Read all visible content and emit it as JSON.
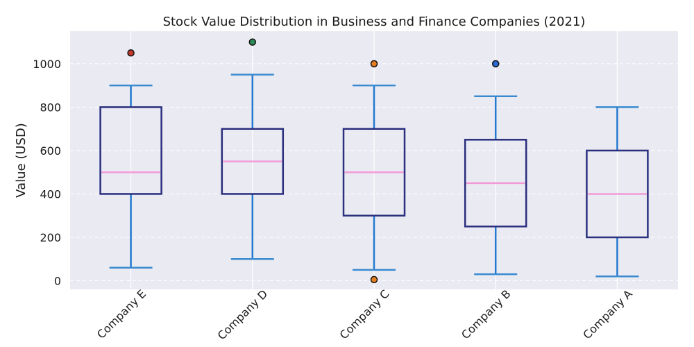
{
  "chart_data": {
    "type": "box",
    "title": "Stock Value Distribution in Business and Finance Companies (2021)",
    "xlabel": "",
    "ylabel": "Value (USD)",
    "ylim": [
      -40,
      1150
    ],
    "yticks": [
      0,
      200,
      400,
      600,
      800,
      1000
    ],
    "grid": true,
    "categories": [
      "Company E",
      "Company D",
      "Company C",
      "Company B",
      "Company A"
    ],
    "series": [
      {
        "category": "Company E",
        "min": 60,
        "q1": 400,
        "median": 500,
        "q3": 800,
        "max": 900,
        "outliers": [
          1050
        ],
        "outlier_color": "#c0392b"
      },
      {
        "category": "Company D",
        "min": 100,
        "q1": 400,
        "median": 550,
        "q3": 700,
        "max": 950,
        "outliers": [
          1100
        ],
        "outlier_color": "#2e8b57"
      },
      {
        "category": "Company C",
        "min": 50,
        "q1": 300,
        "median": 500,
        "q3": 700,
        "max": 900,
        "outliers": [
          1000,
          5
        ],
        "outlier_color": "#e67e22"
      },
      {
        "category": "Company B",
        "min": 30,
        "q1": 250,
        "median": 450,
        "q3": 650,
        "max": 850,
        "outliers": [
          1000
        ],
        "outlier_color": "#2a6ad0"
      },
      {
        "category": "Company A",
        "min": 20,
        "q1": 200,
        "median": 400,
        "q3": 600,
        "max": 800,
        "outliers": [],
        "outlier_color": "#2a6ad0"
      }
    ],
    "colors": {
      "plot_background": "#eaeaf2",
      "grid": "#ffffff",
      "box": "#2a2f7e",
      "whisker": "#2479d1",
      "cap": "#3a8ad0",
      "median": "#f29ad8"
    }
  }
}
